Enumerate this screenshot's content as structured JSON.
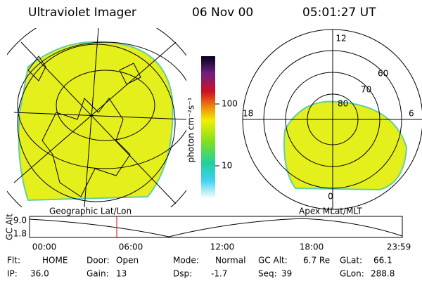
{
  "header": {
    "title": "Ultraviolet Imager",
    "date": "06 Nov 00",
    "time": "05:01:27 UT"
  },
  "colorbar": {
    "label": "photon cm⁻²s⁻¹",
    "ticks": [
      "100",
      "10"
    ]
  },
  "polar": {
    "mlt_labels": [
      "12",
      "6",
      "0",
      "18"
    ],
    "lat_labels": [
      "60",
      "70",
      "80"
    ]
  },
  "panel_labels": {
    "left": "Geographic Lat/Lon",
    "right": "Apex MLat/MLT"
  },
  "altitude_plot": {
    "axis_label": "GC Alt",
    "yticks": [
      "9.0",
      "1.8"
    ],
    "xticks": [
      "00:00",
      "06:00",
      "12:00",
      "18:00",
      "23:59"
    ]
  },
  "status": [
    [
      [
        "Flt:",
        "HOME"
      ],
      [
        "Door:",
        "Open"
      ],
      [
        "Mode:",
        "Normal"
      ],
      [
        "GC Alt:",
        "6.7 Re"
      ],
      [
        "GLat:",
        "66.1"
      ]
    ],
    [
      [
        "IP:",
        "36.0"
      ],
      [
        "Gain:",
        "13"
      ],
      [
        "Dsp:",
        "-1.7"
      ],
      [
        "Seq:",
        "39"
      ],
      [
        "GLon:",
        "288.8"
      ]
    ]
  ]
}
